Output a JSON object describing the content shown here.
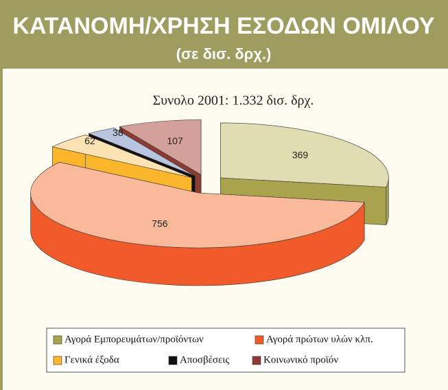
{
  "header": {
    "title": "ΚΑΤΑΝΟΜΗ/ΧΡΗΣΗ ΕΣΟΔΩΝ ΟΜΙΛΟΥ",
    "subtitle": "(σε δισ. δρχ.)"
  },
  "chart_data": {
    "type": "pie3d",
    "title": "Συνολο 2001: 1.332 δισ. δρχ.",
    "categories": [
      "Αγορά Εμπορευμάτων/προϊόντων",
      "Αγορά πρώτων υλών κλπ.",
      "Γενικά έξοδα",
      "Αποσβέσεις",
      "Κοινωνικό προϊόν"
    ],
    "values": [
      369,
      756,
      62,
      38,
      107
    ],
    "colors": [
      "#a9a34e",
      "#f15a29",
      "#fbb62b",
      "#111111",
      "#8e3b32"
    ],
    "top_colors": [
      "#e1ddb2",
      "#fbb99b",
      "#fde3b4",
      "#b9c4de",
      "#d3a19a"
    ]
  }
}
